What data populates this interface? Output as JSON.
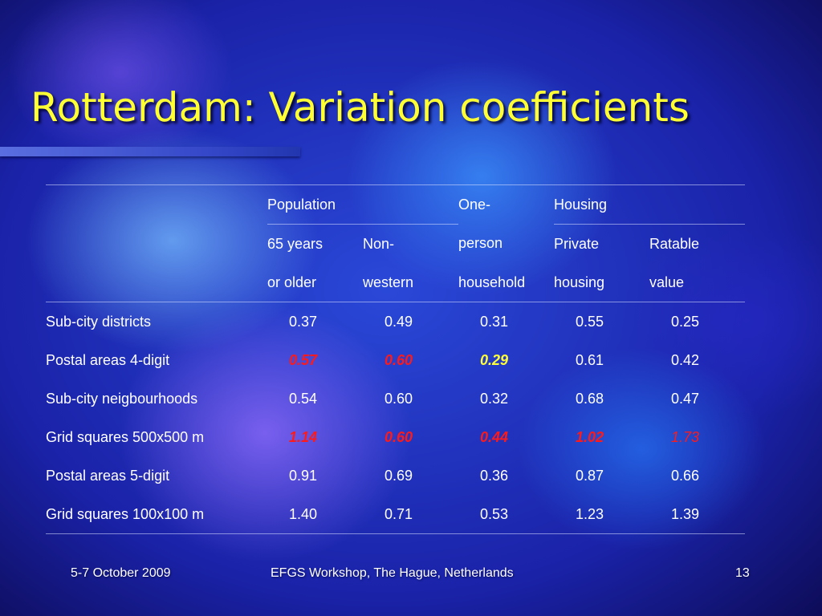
{
  "slide": {
    "title": "Rotterdam: Variation coefficients"
  },
  "table": {
    "header": {
      "row1": [
        "Population",
        "",
        "One-",
        "Housing",
        ""
      ],
      "row2": [
        "65 years",
        "Non-",
        "person",
        "Private",
        "Ratable"
      ],
      "row3": [
        "or older",
        "western",
        "household",
        "housing",
        "value"
      ]
    },
    "rows": [
      {
        "label": "Sub-city districts",
        "values": [
          "0.37",
          "0.49",
          "0.31",
          "0.55",
          "0.25"
        ]
      },
      {
        "label": "Postal areas 4-digit",
        "values": [
          "0.57",
          "0.60",
          "0.29",
          "0.61",
          "0.42"
        ]
      },
      {
        "label": "Sub-city neigbourhoods",
        "values": [
          "0.54",
          "0.60",
          "0.32",
          "0.68",
          "0.47"
        ]
      },
      {
        "label": "Grid squares 500x500 m",
        "values": [
          "1.14",
          "0.60",
          "0.44",
          "1.02",
          "1.73"
        ]
      },
      {
        "label": "Postal areas 5-digit",
        "values": [
          "0.91",
          "0.69",
          "0.36",
          "0.87",
          "0.66"
        ]
      },
      {
        "label": "Grid squares 100x100 m",
        "values": [
          "1.40",
          "0.71",
          "0.53",
          "1.23",
          "1.39"
        ]
      }
    ],
    "highlight_colors": {
      "red": "#ff1a1a",
      "yellow": "#ffff33"
    }
  },
  "footer": {
    "date": "5-7 October 2009",
    "event": "EFGS Workshop, The Hague, Netherlands",
    "page_number": "13"
  }
}
